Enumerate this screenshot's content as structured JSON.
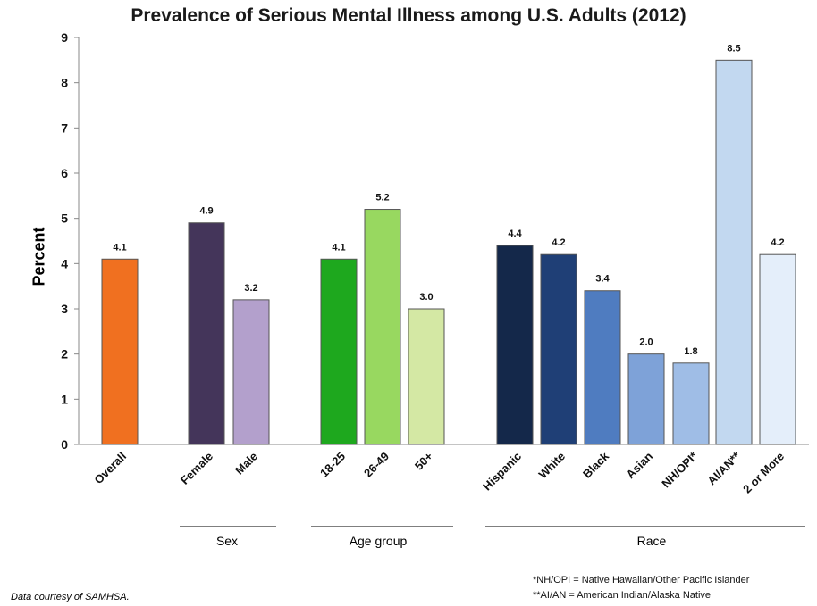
{
  "chart_data": {
    "type": "bar",
    "title": "Prevalence of Serious Mental Illness among U.S. Adults (2012)",
    "ylabel": "Percent",
    "ylim": [
      0,
      9
    ],
    "yticks": [
      "0",
      "1",
      "2",
      "3",
      "4",
      "5",
      "6",
      "7",
      "8",
      "9"
    ],
    "grid": false,
    "categories": [
      "Overall",
      "Female",
      "Male",
      "18-25",
      "26-49",
      "50+",
      "Hispanic",
      "White",
      "Black",
      "Asian",
      "NH/OPI*",
      "AI/AN**",
      "2 or More"
    ],
    "values": [
      4.1,
      4.9,
      3.2,
      4.1,
      5.2,
      3.0,
      4.4,
      4.2,
      3.4,
      2.0,
      1.8,
      8.5,
      4.2
    ],
    "value_labels": [
      "4.1",
      "4.9",
      "3.2",
      "4.1",
      "5.2",
      "3.0",
      "4.4",
      "4.2",
      "3.4",
      "2.0",
      "1.8",
      "8.5",
      "4.2"
    ],
    "colors": [
      "#f07020",
      "#44355a",
      "#b3a0cc",
      "#1ea81e",
      "#98d860",
      "#d4e8a4",
      "#14284a",
      "#1f3f76",
      "#4f7cc0",
      "#7ea2d8",
      "#9fbde6",
      "#c2d8f0",
      "#e4eefa"
    ],
    "groups": [
      {
        "label": "Sex"
      },
      {
        "label": "Age group"
      },
      {
        "label": "Race"
      }
    ]
  },
  "footnotes": [
    "*NH/OPI = Native Hawaiian/Other Pacific Islander",
    "**AI/AN = American Indian/Alaska Native"
  ],
  "credit": "Data courtesy of SAMHSA."
}
